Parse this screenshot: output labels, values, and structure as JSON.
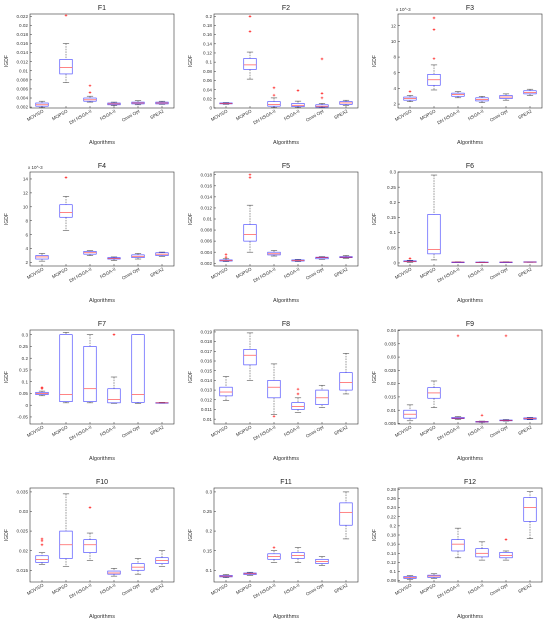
{
  "colors": {
    "box": "#3a3aff",
    "median": "#ff3333",
    "whisker": "#333333",
    "outlier": "#ff0000",
    "axis": "#333333",
    "background": "#ffffff"
  },
  "ylabel": "IGDF",
  "xlabel": "Algorithms",
  "categories": [
    "MOVISO",
    "MOPSO",
    "DN NSGA-II",
    "NSGA-II",
    "Omni Opt",
    "SPEA2"
  ],
  "chart_data": [
    {
      "type": "box",
      "title": "F1",
      "exponent": "",
      "ylim": [
        0.0018,
        0.0225
      ],
      "yticks": [
        0.002,
        0.004,
        0.006,
        0.008,
        0.01,
        0.012,
        0.014,
        0.016,
        0.018,
        0.02,
        0.022
      ],
      "boxes": [
        {
          "min": 0.0019,
          "q1": 0.0022,
          "median": 0.0025,
          "q3": 0.0029,
          "max": 0.0033,
          "outliers": []
        },
        {
          "min": 0.0074,
          "q1": 0.0093,
          "median": 0.0107,
          "q3": 0.0125,
          "max": 0.016,
          "outliers": [
            0.0222
          ]
        },
        {
          "min": 0.0031,
          "q1": 0.0033,
          "median": 0.0036,
          "q3": 0.004,
          "max": 0.0044,
          "outliers": [
            0.0052,
            0.0067
          ]
        },
        {
          "min": 0.0023,
          "q1": 0.0025,
          "median": 0.0027,
          "q3": 0.0029,
          "max": 0.0031,
          "outliers": []
        },
        {
          "min": 0.0025,
          "q1": 0.0027,
          "median": 0.0029,
          "q3": 0.0031,
          "max": 0.0034,
          "outliers": []
        },
        {
          "min": 0.0026,
          "q1": 0.0027,
          "median": 0.0029,
          "q3": 0.0031,
          "max": 0.0033,
          "outliers": []
        }
      ]
    },
    {
      "type": "box",
      "title": "F2",
      "exponent": "",
      "ylim": [
        0,
        0.205
      ],
      "yticks": [
        0,
        0.02,
        0.04,
        0.06,
        0.08,
        0.1,
        0.12,
        0.14,
        0.16,
        0.18,
        0.2
      ],
      "boxes": [
        {
          "min": 0.008,
          "q1": 0.009,
          "median": 0.01,
          "q3": 0.011,
          "max": 0.012,
          "outliers": []
        },
        {
          "min": 0.063,
          "q1": 0.084,
          "median": 0.094,
          "q3": 0.108,
          "max": 0.122,
          "outliers": [
            0.167,
            0.2
          ]
        },
        {
          "min": 0.001,
          "q1": 0.004,
          "median": 0.008,
          "q3": 0.014,
          "max": 0.022,
          "outliers": [
            0.028,
            0.044
          ]
        },
        {
          "min": 0.001,
          "q1": 0.003,
          "median": 0.006,
          "q3": 0.01,
          "max": 0.015,
          "outliers": [
            0.038
          ]
        },
        {
          "min": 0.001,
          "q1": 0.002,
          "median": 0.004,
          "q3": 0.007,
          "max": 0.01,
          "outliers": [
            0.022,
            0.032,
            0.107
          ]
        },
        {
          "min": 0.006,
          "q1": 0.008,
          "median": 0.011,
          "q3": 0.014,
          "max": 0.017,
          "outliers": []
        }
      ]
    },
    {
      "type": "box",
      "title": "F3",
      "exponent": "x 10^-3",
      "ylim": [
        1.5,
        13.5
      ],
      "yticks": [
        2,
        4,
        6,
        8,
        10,
        12
      ],
      "boxes": [
        {
          "min": 2.3,
          "q1": 2.5,
          "median": 2.7,
          "q3": 2.9,
          "max": 3.1,
          "outliers": [
            3.6
          ]
        },
        {
          "min": 3.8,
          "q1": 4.4,
          "median": 5.1,
          "q3": 5.8,
          "max": 7.0,
          "outliers": [
            7.8,
            11.5,
            13.0
          ]
        },
        {
          "min": 2.8,
          "q1": 3.0,
          "median": 3.2,
          "q3": 3.4,
          "max": 3.6,
          "outliers": []
        },
        {
          "min": 2.2,
          "q1": 2.4,
          "median": 2.6,
          "q3": 2.8,
          "max": 3.0,
          "outliers": []
        },
        {
          "min": 2.5,
          "q1": 2.7,
          "median": 2.9,
          "q3": 3.1,
          "max": 3.3,
          "outliers": []
        },
        {
          "min": 3.1,
          "q1": 3.3,
          "median": 3.5,
          "q3": 3.7,
          "max": 3.9,
          "outliers": []
        }
      ]
    },
    {
      "type": "box",
      "title": "F4",
      "exponent": "x 10^-3",
      "ylim": [
        1.5,
        15
      ],
      "yticks": [
        2,
        4,
        6,
        8,
        10,
        12,
        14
      ],
      "boxes": [
        {
          "min": 2.2,
          "q1": 2.5,
          "median": 2.8,
          "q3": 3.0,
          "max": 3.3,
          "outliers": []
        },
        {
          "min": 6.6,
          "q1": 8.5,
          "median": 9.2,
          "q3": 10.3,
          "max": 11.5,
          "outliers": [
            14.2
          ]
        },
        {
          "min": 3.0,
          "q1": 3.2,
          "median": 3.4,
          "q3": 3.6,
          "max": 3.7,
          "outliers": []
        },
        {
          "min": 2.3,
          "q1": 2.5,
          "median": 2.6,
          "q3": 2.7,
          "max": 2.8,
          "outliers": []
        },
        {
          "min": 2.5,
          "q1": 2.7,
          "median": 2.9,
          "q3": 3.1,
          "max": 3.3,
          "outliers": []
        },
        {
          "min": 2.9,
          "q1": 3.0,
          "median": 3.2,
          "q3": 3.4,
          "max": 3.5,
          "outliers": []
        }
      ]
    },
    {
      "type": "box",
      "title": "F5",
      "exponent": "",
      "ylim": [
        0.0015,
        0.0185
      ],
      "yticks": [
        0.002,
        0.004,
        0.006,
        0.008,
        0.01,
        0.012,
        0.014,
        0.016,
        0.018
      ],
      "boxes": [
        {
          "min": 0.0023,
          "q1": 0.0024,
          "median": 0.0025,
          "q3": 0.0026,
          "max": 0.0028,
          "outliers": [
            0.0031,
            0.0036
          ]
        },
        {
          "min": 0.004,
          "q1": 0.006,
          "median": 0.0072,
          "q3": 0.009,
          "max": 0.0125,
          "outliers": [
            0.0175,
            0.018
          ]
        },
        {
          "min": 0.0033,
          "q1": 0.0035,
          "median": 0.0037,
          "q3": 0.004,
          "max": 0.0043,
          "outliers": []
        },
        {
          "min": 0.0023,
          "q1": 0.0024,
          "median": 0.0025,
          "q3": 0.0026,
          "max": 0.0027,
          "outliers": []
        },
        {
          "min": 0.0027,
          "q1": 0.0028,
          "median": 0.003,
          "q3": 0.0031,
          "max": 0.0032,
          "outliers": []
        },
        {
          "min": 0.0029,
          "q1": 0.003,
          "median": 0.0031,
          "q3": 0.0032,
          "max": 0.0034,
          "outliers": []
        }
      ]
    },
    {
      "type": "box",
      "title": "F6",
      "exponent": "",
      "ylim": [
        -0.01,
        0.3
      ],
      "yticks": [
        0,
        0.05,
        0.1,
        0.15,
        0.2,
        0.25,
        0.3
      ],
      "boxes": [
        {
          "min": 0.002,
          "q1": 0.004,
          "median": 0.005,
          "q3": 0.007,
          "max": 0.009,
          "outliers": [
            0.015
          ]
        },
        {
          "min": 0.01,
          "q1": 0.03,
          "median": 0.045,
          "q3": 0.16,
          "max": 0.29,
          "outliers": []
        },
        {
          "min": 0.002,
          "q1": 0.002,
          "median": 0.003,
          "q3": 0.003,
          "max": 0.004,
          "outliers": []
        },
        {
          "min": 0.001,
          "q1": 0.002,
          "median": 0.002,
          "q3": 0.003,
          "max": 0.003,
          "outliers": []
        },
        {
          "min": 0.002,
          "q1": 0.002,
          "median": 0.003,
          "q3": 0.003,
          "max": 0.004,
          "outliers": []
        },
        {
          "min": 0.002,
          "q1": 0.003,
          "median": 0.003,
          "q3": 0.004,
          "max": 0.004,
          "outliers": []
        }
      ]
    },
    {
      "type": "box",
      "title": "F7",
      "exponent": "",
      "ylim": [
        -0.08,
        0.32
      ],
      "yticks": [
        -0.05,
        0,
        0.05,
        0.1,
        0.15,
        0.2,
        0.25,
        0.3
      ],
      "boxes": [
        {
          "min": 0.04,
          "q1": 0.045,
          "median": 0.05,
          "q3": 0.055,
          "max": 0.06,
          "outliers": [
            0.07,
            0.075
          ]
        },
        {
          "min": 0.01,
          "q1": 0.015,
          "median": 0.045,
          "q3": 0.3,
          "max": 0.31,
          "outliers": []
        },
        {
          "min": 0.01,
          "q1": 0.015,
          "median": 0.07,
          "q3": 0.25,
          "max": 0.3,
          "outliers": []
        },
        {
          "min": 0.008,
          "q1": 0.01,
          "median": 0.025,
          "q3": 0.07,
          "max": 0.12,
          "outliers": [
            0.3
          ]
        },
        {
          "min": 0.008,
          "q1": 0.012,
          "median": 0.045,
          "q3": 0.3,
          "max": 0.3,
          "outliers": []
        },
        {
          "min": 0.008,
          "q1": 0.009,
          "median": 0.01,
          "q3": 0.011,
          "max": 0.012,
          "outliers": []
        }
      ]
    },
    {
      "type": "box",
      "title": "F8",
      "exponent": "",
      "ylim": [
        0.0095,
        0.0192
      ],
      "yticks": [
        0.01,
        0.011,
        0.012,
        0.013,
        0.014,
        0.015,
        0.016,
        0.017,
        0.018,
        0.019
      ],
      "boxes": [
        {
          "min": 0.0119,
          "q1": 0.0124,
          "median": 0.0128,
          "q3": 0.0133,
          "max": 0.0144,
          "outliers": []
        },
        {
          "min": 0.014,
          "q1": 0.0156,
          "median": 0.0166,
          "q3": 0.0172,
          "max": 0.0189,
          "outliers": []
        },
        {
          "min": 0.0105,
          "q1": 0.0122,
          "median": 0.0133,
          "q3": 0.014,
          "max": 0.0157,
          "outliers": [
            0.0103
          ]
        },
        {
          "min": 0.0107,
          "q1": 0.011,
          "median": 0.0113,
          "q3": 0.0117,
          "max": 0.0122,
          "outliers": [
            0.0126,
            0.0131
          ]
        },
        {
          "min": 0.0112,
          "q1": 0.0115,
          "median": 0.0122,
          "q3": 0.013,
          "max": 0.0135,
          "outliers": []
        },
        {
          "min": 0.0126,
          "q1": 0.013,
          "median": 0.0138,
          "q3": 0.0148,
          "max": 0.0168,
          "outliers": []
        }
      ]
    },
    {
      "type": "box",
      "title": "F9",
      "exponent": "",
      "ylim": [
        0.0048,
        0.0402
      ],
      "yticks": [
        0.005,
        0.01,
        0.015,
        0.02,
        0.025,
        0.03,
        0.035,
        0.04
      ],
      "boxes": [
        {
          "min": 0.006,
          "q1": 0.007,
          "median": 0.0085,
          "q3": 0.01,
          "max": 0.012,
          "outliers": []
        },
        {
          "min": 0.011,
          "q1": 0.0145,
          "median": 0.0165,
          "q3": 0.0185,
          "max": 0.021,
          "outliers": []
        },
        {
          "min": 0.0065,
          "q1": 0.0068,
          "median": 0.007,
          "q3": 0.0073,
          "max": 0.0076,
          "outliers": [
            0.038
          ]
        },
        {
          "min": 0.0054,
          "q1": 0.0055,
          "median": 0.0056,
          "q3": 0.0058,
          "max": 0.0059,
          "outliers": [
            0.0081
          ]
        },
        {
          "min": 0.0059,
          "q1": 0.006,
          "median": 0.0062,
          "q3": 0.0063,
          "max": 0.0065,
          "outliers": [
            0.038
          ]
        },
        {
          "min": 0.0064,
          "q1": 0.0066,
          "median": 0.0068,
          "q3": 0.0071,
          "max": 0.0073,
          "outliers": []
        }
      ]
    },
    {
      "type": "box",
      "title": "F10",
      "exponent": "",
      "ylim": [
        0.012,
        0.036
      ],
      "yticks": [
        0.015,
        0.02,
        0.025,
        0.03,
        0.035
      ],
      "boxes": [
        {
          "min": 0.0165,
          "q1": 0.017,
          "median": 0.0177,
          "q3": 0.0187,
          "max": 0.0195,
          "outliers": [
            0.0215,
            0.0225,
            0.023
          ]
        },
        {
          "min": 0.016,
          "q1": 0.018,
          "median": 0.0215,
          "q3": 0.025,
          "max": 0.0345,
          "outliers": []
        },
        {
          "min": 0.0175,
          "q1": 0.0195,
          "median": 0.0215,
          "q3": 0.0228,
          "max": 0.0245,
          "outliers": [
            0.031
          ]
        },
        {
          "min": 0.0135,
          "q1": 0.014,
          "median": 0.0143,
          "q3": 0.0148,
          "max": 0.0155,
          "outliers": []
        },
        {
          "min": 0.014,
          "q1": 0.015,
          "median": 0.0158,
          "q3": 0.0167,
          "max": 0.018,
          "outliers": []
        },
        {
          "min": 0.016,
          "q1": 0.0167,
          "median": 0.0175,
          "q3": 0.0182,
          "max": 0.02,
          "outliers": []
        }
      ]
    },
    {
      "type": "box",
      "title": "F11",
      "exponent": "",
      "ylim": [
        0.07,
        0.31
      ],
      "yticks": [
        0.1,
        0.15,
        0.2,
        0.25,
        0.3
      ],
      "boxes": [
        {
          "min": 0.081,
          "q1": 0.083,
          "median": 0.085,
          "q3": 0.087,
          "max": 0.089,
          "outliers": []
        },
        {
          "min": 0.087,
          "q1": 0.089,
          "median": 0.091,
          "q3": 0.093,
          "max": 0.095,
          "outliers": []
        },
        {
          "min": 0.12,
          "q1": 0.128,
          "median": 0.135,
          "q3": 0.142,
          "max": 0.15,
          "outliers": [
            0.158
          ]
        },
        {
          "min": 0.12,
          "q1": 0.13,
          "median": 0.138,
          "q3": 0.145,
          "max": 0.158,
          "outliers": []
        },
        {
          "min": 0.112,
          "q1": 0.117,
          "median": 0.122,
          "q3": 0.128,
          "max": 0.135,
          "outliers": []
        },
        {
          "min": 0.18,
          "q1": 0.215,
          "median": 0.248,
          "q3": 0.272,
          "max": 0.3,
          "outliers": []
        }
      ]
    },
    {
      "type": "box",
      "title": "F12",
      "exponent": "",
      "ylim": [
        0.077,
        0.283
      ],
      "yticks": [
        0.08,
        0.1,
        0.12,
        0.14,
        0.16,
        0.18,
        0.2,
        0.22,
        0.24,
        0.26,
        0.28
      ],
      "boxes": [
        {
          "min": 0.083,
          "q1": 0.085,
          "median": 0.087,
          "q3": 0.089,
          "max": 0.091,
          "outliers": []
        },
        {
          "min": 0.085,
          "q1": 0.087,
          "median": 0.09,
          "q3": 0.092,
          "max": 0.095,
          "outliers": []
        },
        {
          "min": 0.13,
          "q1": 0.145,
          "median": 0.16,
          "q3": 0.17,
          "max": 0.195,
          "outliers": []
        },
        {
          "min": 0.125,
          "q1": 0.132,
          "median": 0.14,
          "q3": 0.15,
          "max": 0.165,
          "outliers": []
        },
        {
          "min": 0.125,
          "q1": 0.13,
          "median": 0.135,
          "q3": 0.142,
          "max": 0.145,
          "outliers": [
            0.17
          ]
        },
        {
          "min": 0.172,
          "q1": 0.21,
          "median": 0.24,
          "q3": 0.262,
          "max": 0.275,
          "outliers": []
        }
      ]
    }
  ]
}
